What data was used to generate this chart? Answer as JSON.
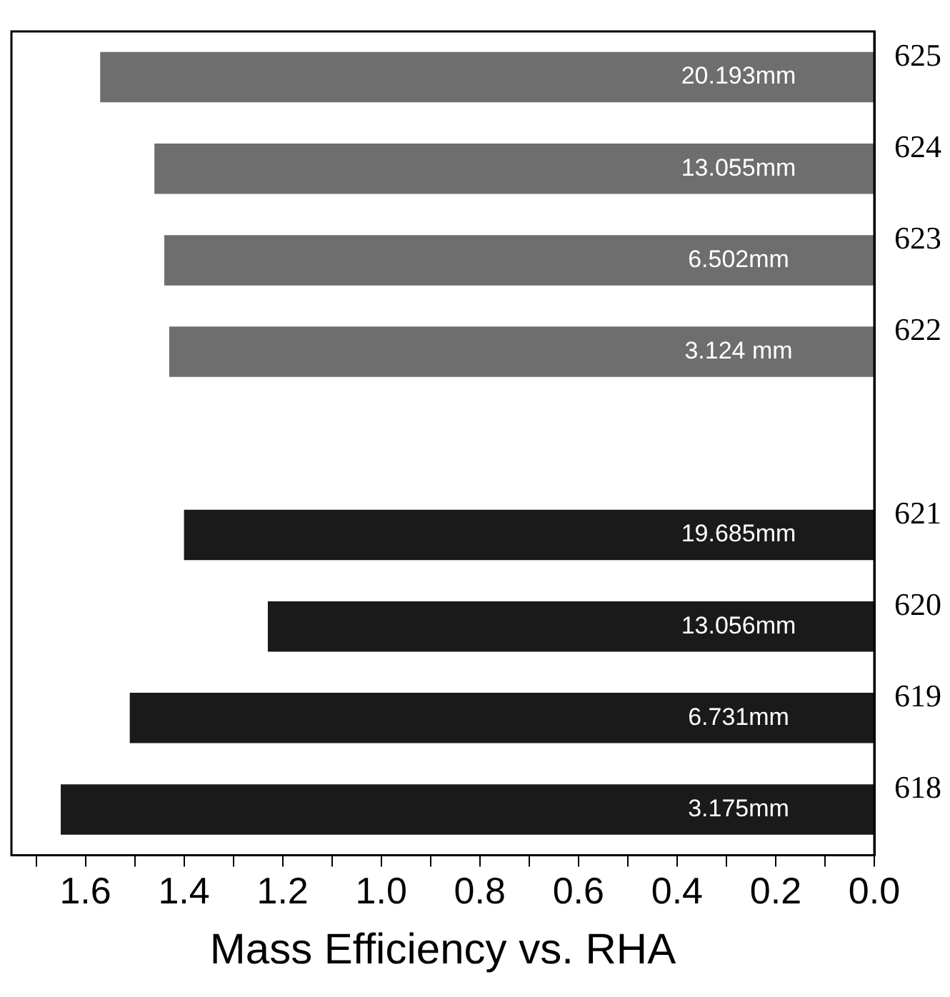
{
  "chart_data": {
    "type": "bar",
    "orientation": "horizontal",
    "xlabel": "Mass Efficiency vs. RHA",
    "categories": [
      "20.193mm",
      "13.055mm",
      "6.502mm",
      "3.124 mm",
      null,
      "19.685mm",
      "13.056mm",
      "6.731mm",
      "3.175mm"
    ],
    "values": [
      1.57,
      1.46,
      1.44,
      1.43,
      null,
      1.4,
      1.23,
      1.51,
      1.65
    ],
    "colors": [
      "#6e6e6e",
      "#6e6e6e",
      "#6e6e6e",
      "#6e6e6e",
      null,
      "#1a1a1a",
      "#1a1a1a",
      "#1a1a1a",
      "#1a1a1a"
    ],
    "xlim": [
      1.75,
      0
    ],
    "xticks": [
      {
        "value": 0,
        "label": "0.0"
      },
      {
        "value": 0.1,
        "label": null
      },
      {
        "value": 0.2,
        "label": "0.2"
      },
      {
        "value": 0.3,
        "label": null
      },
      {
        "value": 0.4,
        "label": "0.4"
      },
      {
        "value": 0.5,
        "label": null
      },
      {
        "value": 0.6,
        "label": "0.6"
      },
      {
        "value": 0.7,
        "label": null
      },
      {
        "value": 0.8,
        "label": "0.8"
      },
      {
        "value": 0.9,
        "label": null
      },
      {
        "value": 1.0,
        "label": "1.0"
      },
      {
        "value": 1.1,
        "label": null
      },
      {
        "value": 1.2,
        "label": "1.2"
      },
      {
        "value": 1.3,
        "label": null
      },
      {
        "value": 1.4,
        "label": "1.4"
      },
      {
        "value": 1.5,
        "label": null
      },
      {
        "value": 1.6,
        "label": "1.6"
      },
      {
        "value": 1.7,
        "label": null
      }
    ],
    "annotations": [
      "625",
      "624",
      "623",
      "622",
      "621",
      "620",
      "619",
      "618"
    ],
    "grid": false,
    "legend": false
  }
}
